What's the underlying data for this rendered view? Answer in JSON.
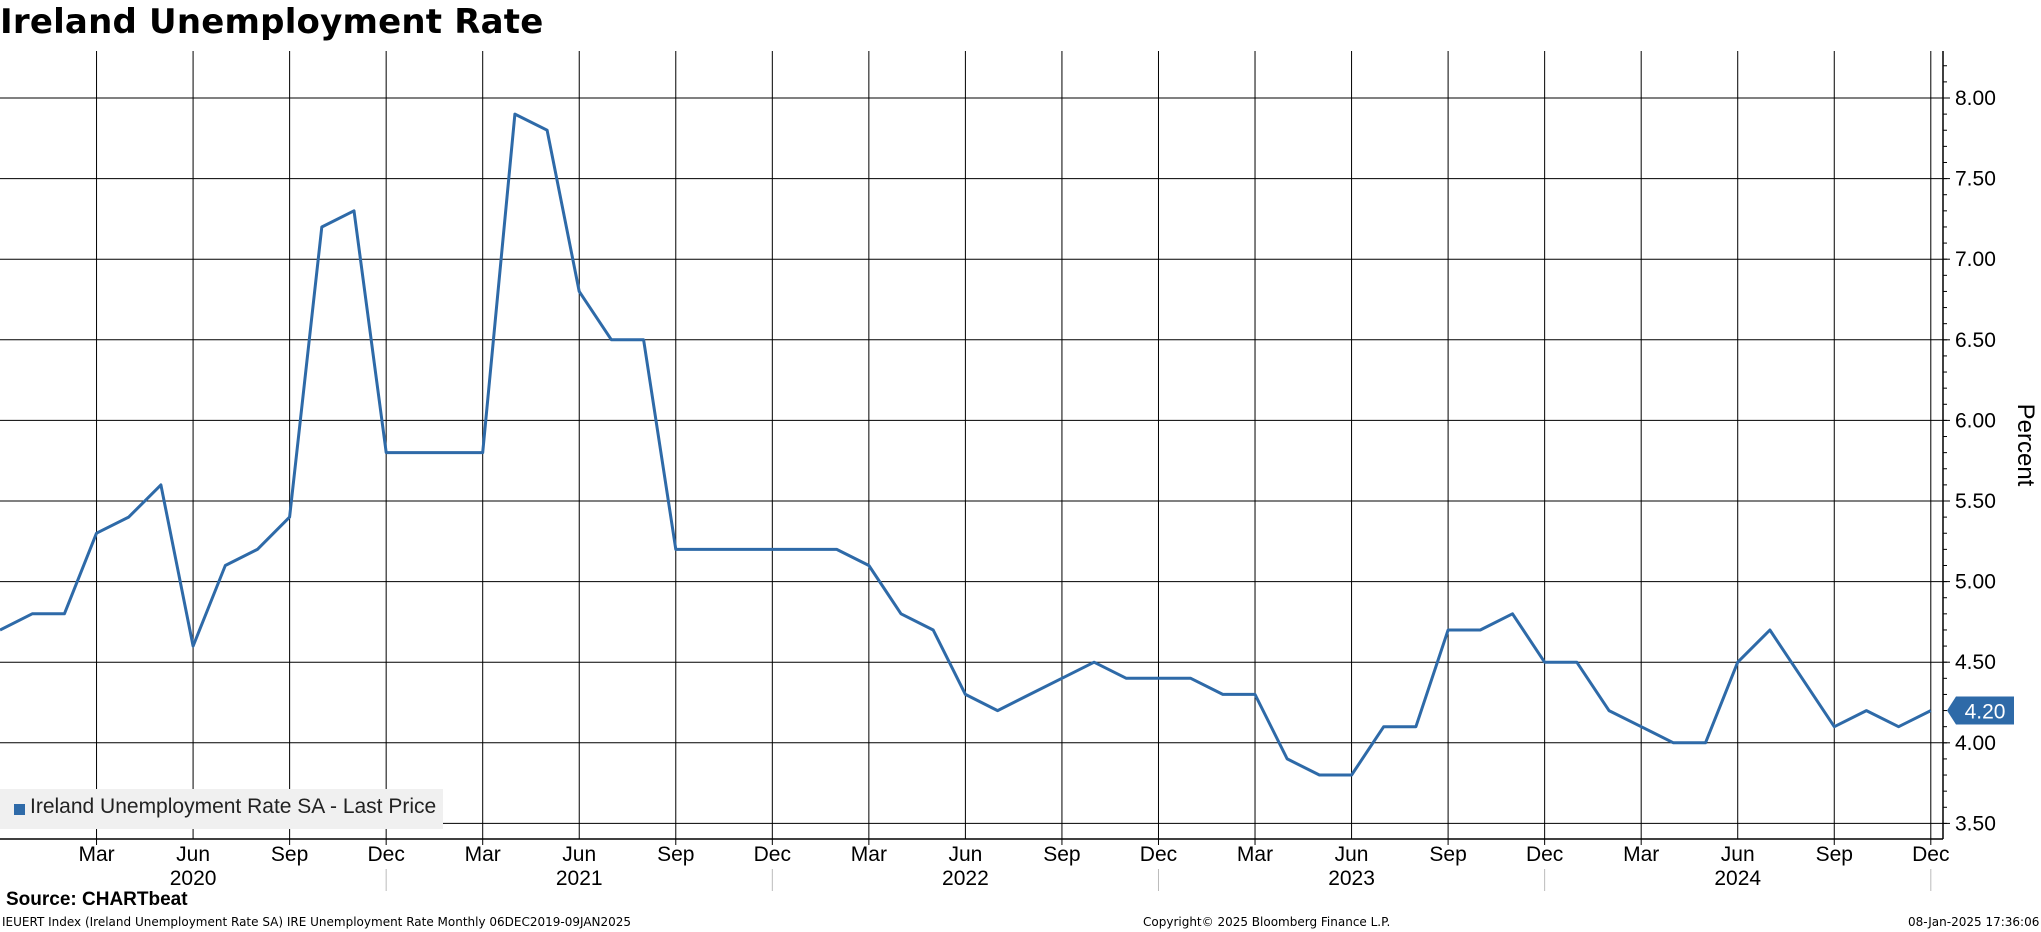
{
  "title": "Ireland Unemployment Rate",
  "source": "Source: CHARTbeat",
  "footer": {
    "left": "IEUERT Index (Ireland Unemployment Rate SA) IRE Unemployment Rate  Monthly 06DEC2019-09JAN2025",
    "center": "Copyright© 2025 Bloomberg Finance L.P.",
    "right": "08-Jan-2025 17:36:06"
  },
  "legend_label": "Ireland Unemployment Rate SA - Last Price",
  "last_value_label": "4.20",
  "colors": {
    "line": "#2e6aa8",
    "grid": "#000000",
    "legend_bg": "#f0f0f0"
  },
  "chart_data": {
    "type": "line",
    "title": "Ireland Unemployment Rate",
    "ylabel": "Percent",
    "ylim": [
      3.4,
      8.3
    ],
    "y_ticks": [
      "3.50",
      "4.00",
      "4.50",
      "5.00",
      "5.50",
      "6.00",
      "6.50",
      "7.00",
      "7.50",
      "8.00"
    ],
    "x_month_ticks": [
      "Mar",
      "Jun",
      "Sep",
      "Dec",
      "Mar",
      "Jun",
      "Sep",
      "Dec",
      "Mar",
      "Jun",
      "Sep",
      "Dec",
      "Mar",
      "Jun",
      "Sep",
      "Dec",
      "Mar",
      "Jun",
      "Sep",
      "Dec"
    ],
    "x_year_labels": [
      "2020",
      "2021",
      "2022",
      "2023",
      "2024"
    ],
    "grid": true,
    "legend_position": "bottom-left",
    "series": [
      {
        "name": "Ireland Unemployment Rate SA - Last Price",
        "x": [
          "2019-12",
          "2020-01",
          "2020-02",
          "2020-03",
          "2020-04",
          "2020-05",
          "2020-06",
          "2020-07",
          "2020-08",
          "2020-09",
          "2020-10",
          "2020-11",
          "2020-12",
          "2021-01",
          "2021-02",
          "2021-03",
          "2021-04",
          "2021-05",
          "2021-06",
          "2021-07",
          "2021-08",
          "2021-09",
          "2021-10",
          "2021-11",
          "2021-12",
          "2022-01",
          "2022-02",
          "2022-03",
          "2022-04",
          "2022-05",
          "2022-06",
          "2022-07",
          "2022-08",
          "2022-09",
          "2022-10",
          "2022-11",
          "2022-12",
          "2023-01",
          "2023-02",
          "2023-03",
          "2023-04",
          "2023-05",
          "2023-06",
          "2023-07",
          "2023-08",
          "2023-09",
          "2023-10",
          "2023-11",
          "2023-12",
          "2024-01",
          "2024-02",
          "2024-03",
          "2024-04",
          "2024-05",
          "2024-06",
          "2024-07",
          "2024-08",
          "2024-09",
          "2024-10",
          "2024-11",
          "2024-12"
        ],
        "values": [
          4.7,
          4.8,
          4.8,
          5.3,
          5.4,
          5.6,
          4.6,
          5.1,
          5.2,
          5.4,
          7.2,
          7.3,
          5.8,
          5.8,
          5.8,
          5.8,
          7.9,
          7.8,
          6.8,
          6.5,
          6.5,
          5.2,
          5.2,
          5.2,
          5.2,
          5.2,
          5.2,
          5.1,
          4.8,
          4.7,
          4.3,
          4.2,
          4.3,
          4.4,
          4.5,
          4.4,
          4.4,
          4.4,
          4.3,
          4.3,
          3.9,
          3.8,
          3.8,
          4.1,
          4.1,
          4.7,
          4.7,
          4.8,
          4.5,
          4.5,
          4.2,
          4.1,
          4.0,
          4.0,
          4.5,
          4.7,
          4.4,
          4.1,
          4.2,
          4.1,
          4.2
        ]
      }
    ]
  }
}
